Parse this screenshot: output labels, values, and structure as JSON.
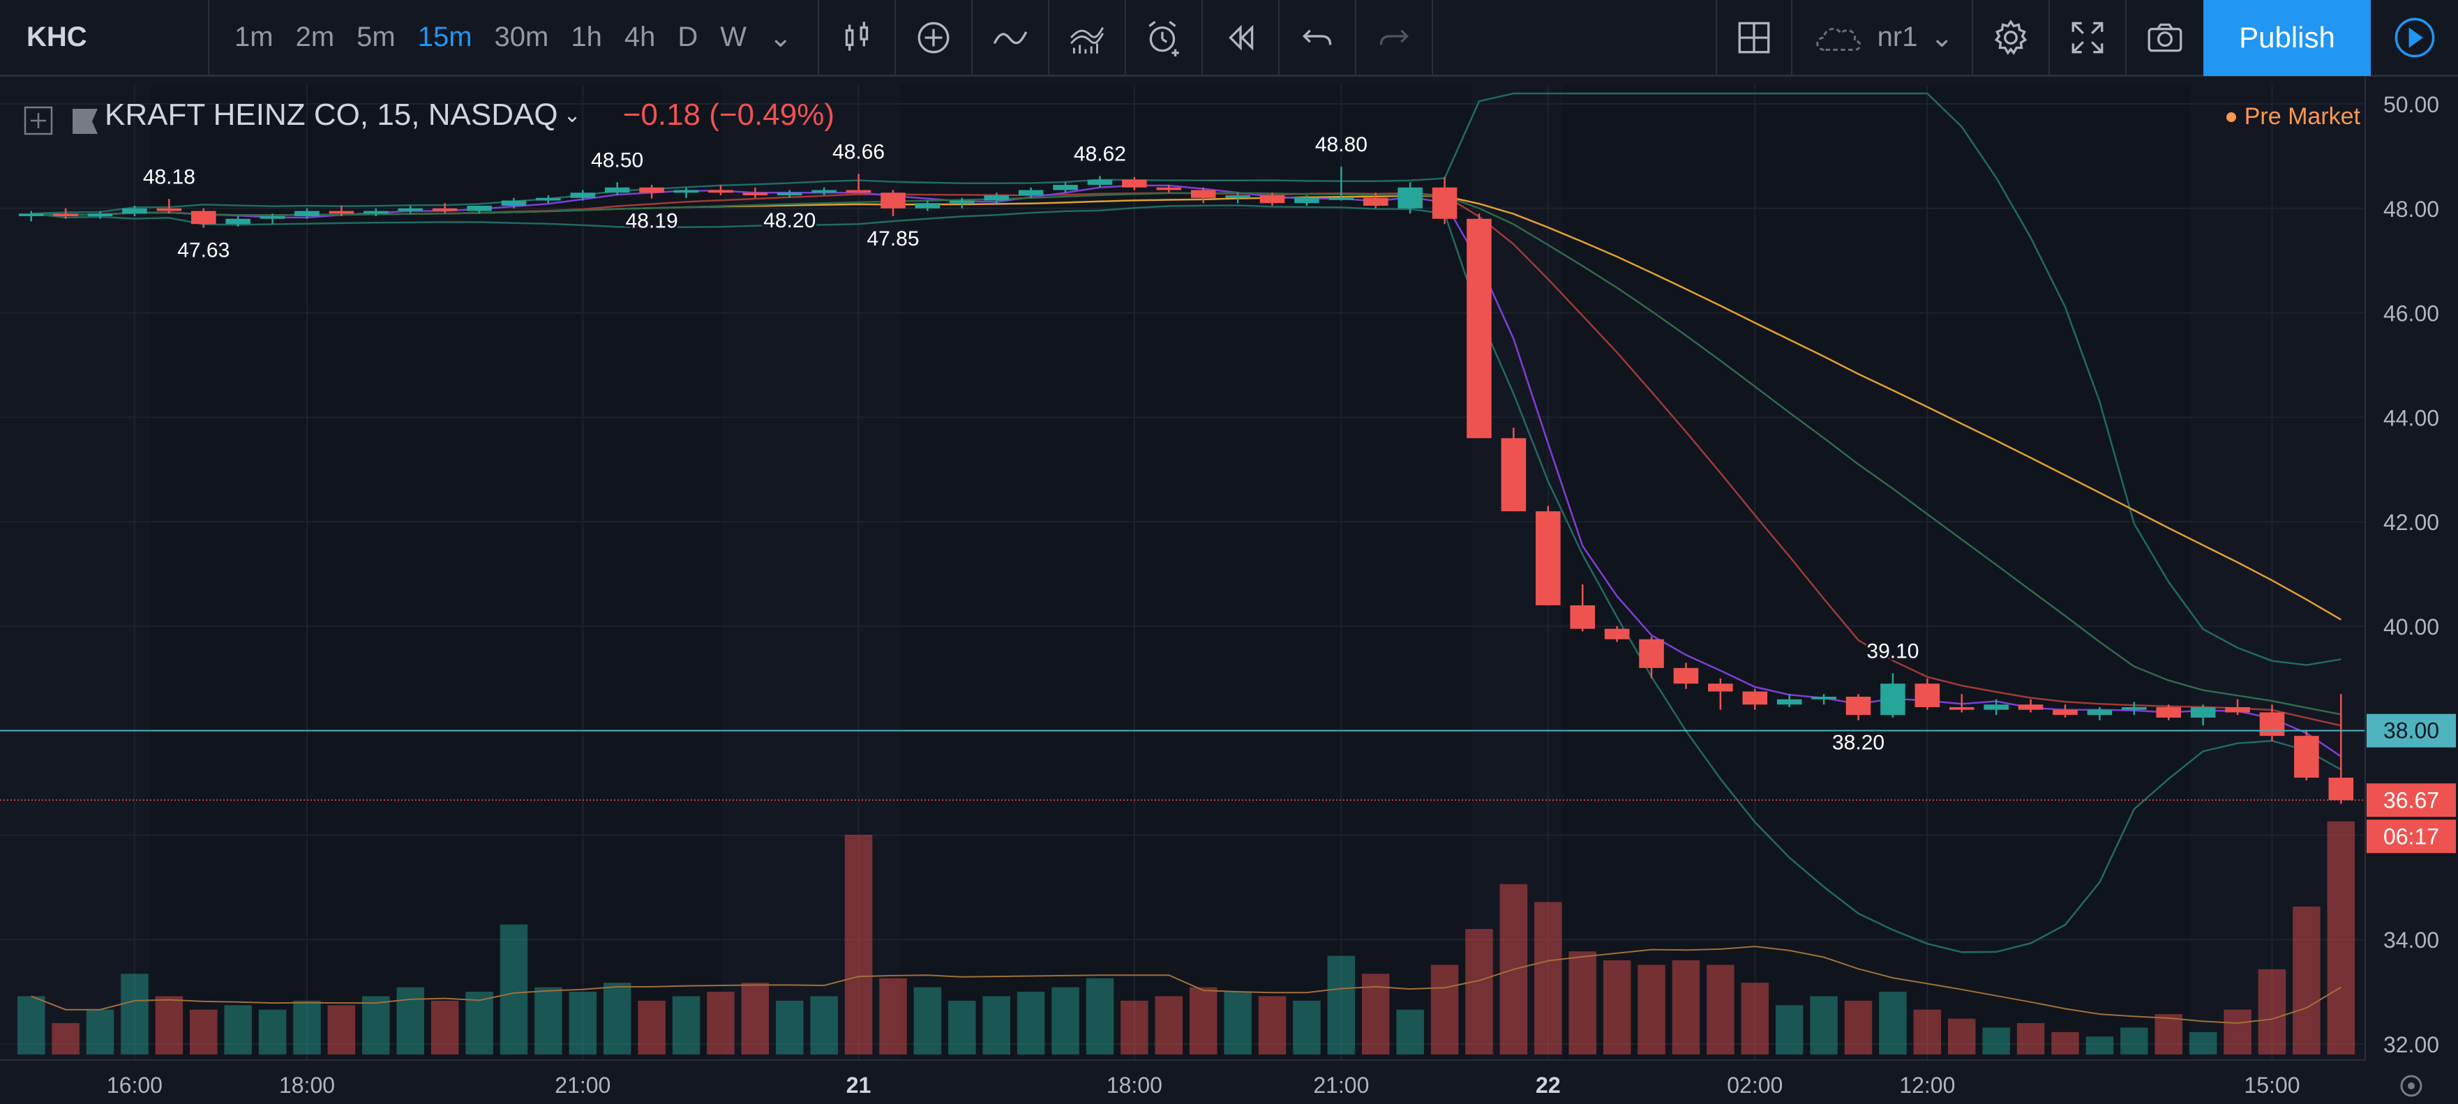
{
  "toolbar": {
    "symbol": "KHC",
    "intervals": [
      "1m",
      "2m",
      "5m",
      "15m",
      "30m",
      "1h",
      "4h",
      "D",
      "W"
    ],
    "active_interval": "15m",
    "cloud_name": "nr1",
    "publish_label": "Publish"
  },
  "legend": {
    "title": "KRAFT HEINZ CO, 15, NASDAQ",
    "change": "−0.18 (−0.49%)",
    "session": "Pre Market"
  },
  "axis": {
    "price_ticks": [
      "50.00",
      "48.00",
      "46.00",
      "44.00",
      "42.00",
      "40.00",
      "34.00",
      "32.00"
    ],
    "time_ticks": [
      "16:00",
      "18:00",
      "21:00",
      "21",
      "18:00",
      "21:00",
      "22",
      "02:00",
      "12:00",
      "15:00"
    ],
    "h_line_label": "38.00",
    "last_price": "36.67",
    "countdown": "06:17"
  },
  "annotations": [
    "48.18",
    "47.63",
    "48.50",
    "48.19",
    "48.20",
    "48.66",
    "47.85",
    "48.62",
    "48.80",
    "39.10",
    "38.20"
  ],
  "colors": {
    "up": "#26a69a",
    "down": "#ef5350",
    "accent": "#2196f3",
    "premarket": "#ff9850"
  },
  "chart_data": {
    "type": "candlestick",
    "ylim": [
      31.8,
      50.2
    ],
    "h_line": 38.0,
    "last_price": 36.67,
    "candles": [
      [
        47.85,
        47.95,
        47.75,
        47.9
      ],
      [
        47.9,
        48.0,
        47.8,
        47.85
      ],
      [
        47.85,
        47.95,
        47.8,
        47.9
      ],
      [
        47.9,
        48.05,
        47.85,
        48.0
      ],
      [
        48.0,
        48.18,
        47.9,
        47.95
      ],
      [
        47.95,
        48.0,
        47.63,
        47.7
      ],
      [
        47.7,
        47.85,
        47.65,
        47.8
      ],
      [
        47.8,
        47.9,
        47.7,
        47.85
      ],
      [
        47.85,
        48.0,
        47.8,
        47.95
      ],
      [
        47.95,
        48.05,
        47.85,
        47.9
      ],
      [
        47.9,
        48.0,
        47.85,
        47.95
      ],
      [
        47.95,
        48.05,
        47.9,
        48.0
      ],
      [
        48.0,
        48.1,
        47.9,
        47.95
      ],
      [
        47.95,
        48.05,
        47.9,
        48.05
      ],
      [
        48.05,
        48.2,
        48.0,
        48.15
      ],
      [
        48.15,
        48.25,
        48.1,
        48.2
      ],
      [
        48.2,
        48.35,
        48.15,
        48.3
      ],
      [
        48.3,
        48.5,
        48.25,
        48.4
      ],
      [
        48.4,
        48.45,
        48.19,
        48.3
      ],
      [
        48.3,
        48.4,
        48.2,
        48.35
      ],
      [
        48.35,
        48.45,
        48.25,
        48.3
      ],
      [
        48.3,
        48.4,
        48.2,
        48.25
      ],
      [
        48.25,
        48.35,
        48.2,
        48.3
      ],
      [
        48.3,
        48.4,
        48.25,
        48.35
      ],
      [
        48.35,
        48.66,
        48.3,
        48.3
      ],
      [
        48.3,
        48.35,
        47.85,
        48.0
      ],
      [
        48.0,
        48.15,
        47.95,
        48.1
      ],
      [
        48.1,
        48.2,
        48.0,
        48.15
      ],
      [
        48.15,
        48.3,
        48.1,
        48.25
      ],
      [
        48.25,
        48.4,
        48.2,
        48.35
      ],
      [
        48.35,
        48.5,
        48.3,
        48.45
      ],
      [
        48.45,
        48.62,
        48.4,
        48.55
      ],
      [
        48.55,
        48.6,
        48.35,
        48.4
      ],
      [
        48.4,
        48.45,
        48.3,
        48.35
      ],
      [
        48.35,
        48.4,
        48.1,
        48.2
      ],
      [
        48.2,
        48.3,
        48.1,
        48.25
      ],
      [
        48.25,
        48.3,
        48.05,
        48.1
      ],
      [
        48.1,
        48.25,
        48.05,
        48.2
      ],
      [
        48.2,
        48.8,
        48.15,
        48.2
      ],
      [
        48.2,
        48.3,
        48.0,
        48.05
      ],
      [
        48.0,
        48.5,
        47.9,
        48.4
      ],
      [
        48.4,
        48.6,
        47.7,
        47.8
      ],
      [
        47.8,
        47.9,
        43.6,
        43.6
      ],
      [
        43.6,
        43.8,
        42.2,
        42.2
      ],
      [
        42.2,
        42.3,
        40.4,
        40.4
      ],
      [
        40.4,
        40.8,
        39.9,
        39.95
      ],
      [
        39.95,
        40.0,
        39.7,
        39.75
      ],
      [
        39.75,
        39.8,
        39.0,
        39.2
      ],
      [
        39.2,
        39.3,
        38.8,
        38.9
      ],
      [
        38.9,
        39.0,
        38.4,
        38.75
      ],
      [
        38.75,
        38.8,
        38.4,
        38.5
      ],
      [
        38.5,
        38.7,
        38.45,
        38.6
      ],
      [
        38.6,
        38.7,
        38.5,
        38.65
      ],
      [
        38.65,
        38.7,
        38.2,
        38.3
      ],
      [
        38.3,
        39.1,
        38.25,
        38.9
      ],
      [
        38.9,
        39.0,
        38.4,
        38.45
      ],
      [
        38.45,
        38.7,
        38.35,
        38.4
      ],
      [
        38.4,
        38.6,
        38.3,
        38.5
      ],
      [
        38.5,
        38.6,
        38.35,
        38.4
      ],
      [
        38.4,
        38.5,
        38.25,
        38.3
      ],
      [
        38.3,
        38.45,
        38.2,
        38.4
      ],
      [
        38.4,
        38.55,
        38.3,
        38.45
      ],
      [
        38.45,
        38.5,
        38.2,
        38.25
      ],
      [
        38.25,
        38.5,
        38.1,
        38.45
      ],
      [
        38.45,
        38.6,
        38.3,
        38.35
      ],
      [
        38.35,
        38.5,
        37.8,
        37.9
      ],
      [
        37.9,
        38.0,
        37.05,
        37.1
      ],
      [
        37.1,
        38.7,
        36.6,
        36.67
      ]
    ],
    "volumes": [
      1.3,
      0.7,
      1.0,
      1.8,
      1.3,
      1.0,
      1.1,
      1.0,
      1.2,
      1.1,
      1.3,
      1.5,
      1.2,
      1.4,
      2.9,
      1.5,
      1.4,
      1.6,
      1.2,
      1.3,
      1.4,
      1.6,
      1.2,
      1.3,
      4.9,
      1.7,
      1.5,
      1.2,
      1.3,
      1.4,
      1.5,
      1.7,
      1.2,
      1.3,
      1.5,
      1.4,
      1.3,
      1.2,
      2.2,
      1.8,
      1.0,
      2.0,
      2.8,
      3.8,
      3.4,
      2.3,
      2.1,
      2.0,
      2.1,
      2.0,
      1.6,
      1.1,
      1.3,
      1.2,
      1.4,
      1.0,
      0.8,
      0.6,
      0.7,
      0.5,
      0.4,
      0.6,
      0.9,
      0.5,
      1.0,
      1.9,
      3.3,
      5.2
    ],
    "volume_max": 5.6
  }
}
